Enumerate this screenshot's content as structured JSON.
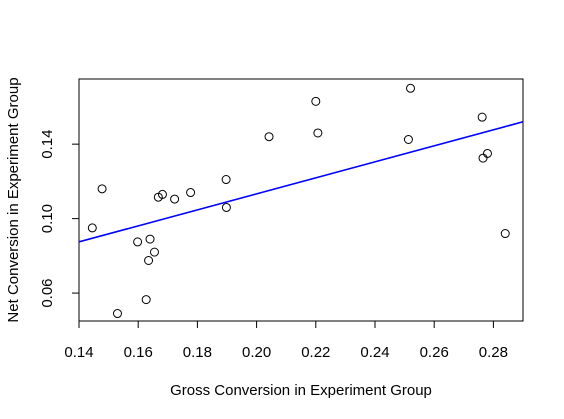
{
  "chart_data": {
    "type": "scatter",
    "title": "",
    "xlabel": "Gross Conversion in Experiment Group",
    "ylabel": "Net Conversion in Experiment Group",
    "xlim": [
      0.14,
      0.29
    ],
    "ylim": [
      0.045,
      0.175
    ],
    "xticks": [
      0.14,
      0.16,
      0.18,
      0.2,
      0.22,
      0.24,
      0.26,
      0.28
    ],
    "xtick_labels": [
      "0.14",
      "0.16",
      "0.18",
      "0.20",
      "0.22",
      "0.24",
      "0.26",
      "0.28"
    ],
    "yticks": [
      0.06,
      0.1,
      0.14
    ],
    "ytick_labels": [
      "0.06",
      "0.10",
      "0.14"
    ],
    "grid": false,
    "points": [
      {
        "x": 0.1445,
        "y": 0.095
      },
      {
        "x": 0.1478,
        "y": 0.116
      },
      {
        "x": 0.153,
        "y": 0.049
      },
      {
        "x": 0.1598,
        "y": 0.0875
      },
      {
        "x": 0.1627,
        "y": 0.0565
      },
      {
        "x": 0.1635,
        "y": 0.0775
      },
      {
        "x": 0.164,
        "y": 0.089
      },
      {
        "x": 0.1655,
        "y": 0.082
      },
      {
        "x": 0.1668,
        "y": 0.1115
      },
      {
        "x": 0.1682,
        "y": 0.113
      },
      {
        "x": 0.1723,
        "y": 0.1105
      },
      {
        "x": 0.1777,
        "y": 0.114
      },
      {
        "x": 0.1897,
        "y": 0.121
      },
      {
        "x": 0.1898,
        "y": 0.106
      },
      {
        "x": 0.2042,
        "y": 0.144
      },
      {
        "x": 0.22,
        "y": 0.163
      },
      {
        "x": 0.2207,
        "y": 0.146
      },
      {
        "x": 0.2513,
        "y": 0.1425
      },
      {
        "x": 0.252,
        "y": 0.17
      },
      {
        "x": 0.2762,
        "y": 0.1545
      },
      {
        "x": 0.2765,
        "y": 0.1325
      },
      {
        "x": 0.278,
        "y": 0.135
      },
      {
        "x": 0.284,
        "y": 0.092
      }
    ],
    "regression_line": {
      "x": [
        0.14,
        0.29
      ],
      "y": [
        0.0875,
        0.152
      ],
      "color": "#0000ff"
    },
    "point_style": "open-circle",
    "point_color": "#000000"
  }
}
